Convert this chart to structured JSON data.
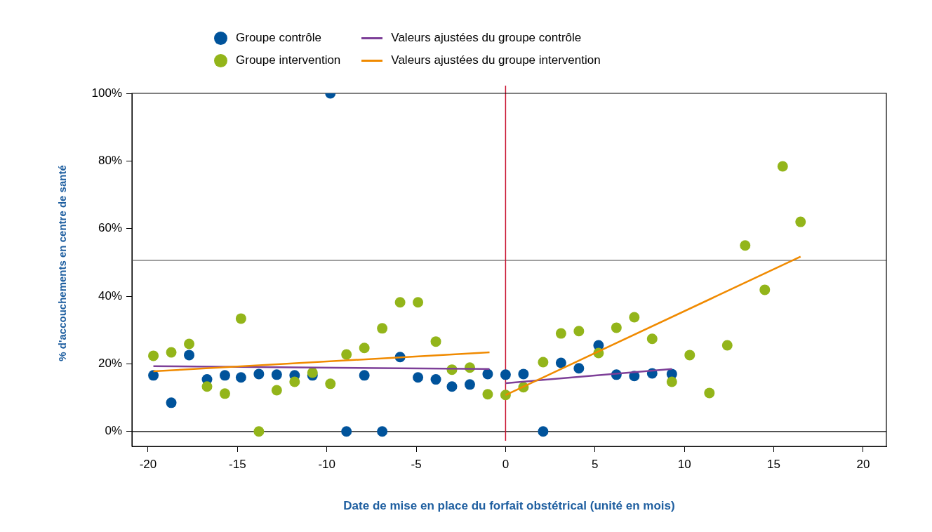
{
  "chart_data": {
    "type": "scatter",
    "xlabel": "Date de mise en place du forfait obstétrical (unité en mois)",
    "ylabel": "% d'accouchements en centre de santé",
    "xlim": [
      -20.9,
      21.3
    ],
    "xticks": [
      -20,
      -15,
      -10,
      -5,
      0,
      5,
      10,
      15,
      20
    ],
    "ylim": [
      -4.4,
      100
    ],
    "yticks": [
      {
        "value": 0,
        "label": "0%"
      },
      {
        "value": 20,
        "label": "20%"
      },
      {
        "value": 40,
        "label": "40%"
      },
      {
        "value": 60,
        "label": "60%"
      },
      {
        "value": 80,
        "label": "80%"
      },
      {
        "value": 100,
        "label": "100%"
      }
    ],
    "grid": false,
    "legend": "top",
    "line_style": "solid",
    "ref_lines": [
      {
        "axis": "y",
        "value": 0,
        "color": "#000000"
      },
      {
        "axis": "y",
        "value": 50.6,
        "color": "#808080"
      },
      {
        "axis": "x",
        "value": 0,
        "color": "#c8102e"
      }
    ],
    "series": [
      {
        "name": "Groupe contrôle",
        "type": "scatter",
        "marker": "circle",
        "color": "#00539b",
        "x": [
          -19.7,
          -18.7,
          -17.7,
          -16.7,
          -15.7,
          -14.8,
          -13.8,
          -12.8,
          -11.8,
          -10.8,
          -9.8,
          -8.9,
          -7.9,
          -6.9,
          -5.9,
          -4.9,
          -3.9,
          -3.0,
          -2.0,
          -1.0,
          0,
          1.0,
          2.1,
          3.1,
          4.1,
          5.2,
          6.2,
          7.2,
          8.2,
          9.3
        ],
        "values": [
          16.6,
          8.5,
          22.6,
          15.4,
          16.6,
          16.0,
          17.0,
          16.8,
          16.6,
          16.6,
          100,
          0,
          16.6,
          0,
          22.0,
          16.0,
          15.4,
          13.3,
          13.9,
          17.0,
          16.8,
          17.0,
          0,
          20.3,
          18.7,
          25.5,
          16.8,
          16.4,
          17.2,
          17.0
        ]
      },
      {
        "name": "Groupe intervention",
        "type": "scatter",
        "marker": "circle",
        "color": "#93b51a",
        "x": [
          -19.7,
          -18.7,
          -17.7,
          -16.7,
          -15.7,
          -14.8,
          -13.8,
          -12.8,
          -11.8,
          -10.8,
          -9.8,
          -8.9,
          -7.9,
          -6.9,
          -5.9,
          -4.9,
          -3.9,
          -3.0,
          -2.0,
          -1.0,
          0,
          1.0,
          2.1,
          3.1,
          4.1,
          5.2,
          6.2,
          7.2,
          8.2,
          9.3,
          10.3,
          11.4,
          12.4,
          13.4,
          14.5,
          15.5,
          16.5
        ],
        "values": [
          22.4,
          23.4,
          25.9,
          13.3,
          11.2,
          33.4,
          0,
          12.2,
          14.7,
          17.4,
          14.1,
          22.8,
          24.7,
          30.5,
          38.2,
          38.2,
          26.6,
          18.3,
          18.9,
          11.0,
          10.8,
          13.1,
          20.5,
          29.0,
          29.7,
          23.2,
          30.7,
          33.8,
          27.4,
          14.7,
          22.6,
          11.4,
          25.5,
          55.0,
          41.9,
          78.4,
          62.0
        ]
      },
      {
        "name": "Valeurs ajustées du groupe contrôle",
        "type": "line",
        "marker": "none",
        "color": "#7d3f98",
        "x": [
          -19.7,
          -0.9
        ],
        "values": [
          19.3,
          18.5
        ]
      },
      {
        "type": "line",
        "marker": "none",
        "color": "#7d3f98",
        "x": [
          0,
          9.3
        ],
        "values": [
          14.3,
          18.5
        ]
      },
      {
        "name": "Valeurs ajustées du groupe intervention",
        "type": "line",
        "marker": "none",
        "color": "#f08a00",
        "x": [
          -19.7,
          -0.9
        ],
        "values": [
          17.8,
          23.4
        ]
      },
      {
        "type": "line",
        "marker": "none",
        "color": "#f08a00",
        "x": [
          0,
          16.5
        ],
        "values": [
          10.8,
          51.7
        ]
      }
    ]
  }
}
